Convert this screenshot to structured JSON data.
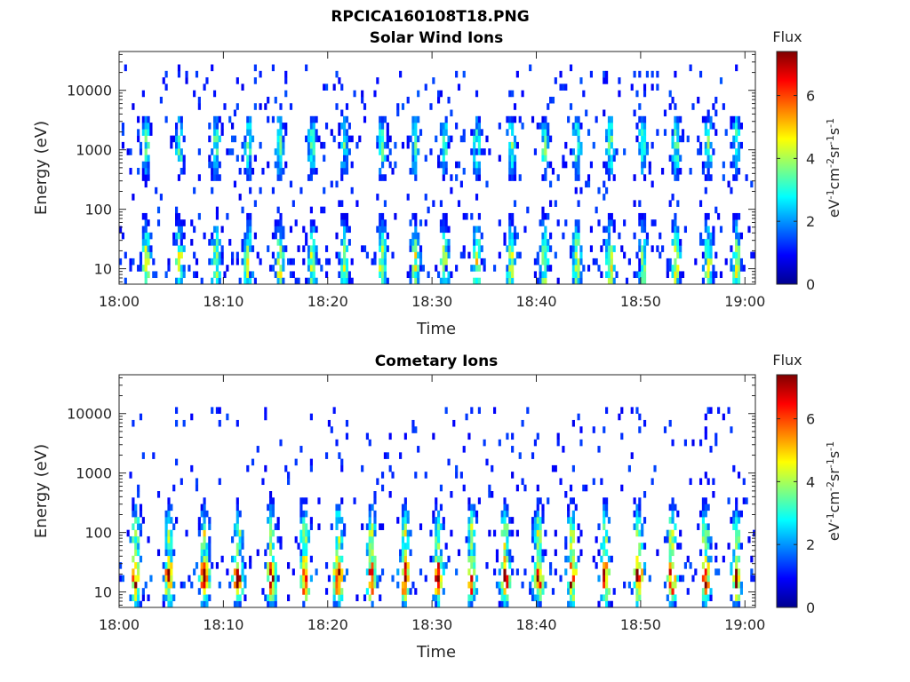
{
  "figure": {
    "title": "RPCICA160108T18.PNG"
  },
  "chart_data": [
    {
      "type": "heatmap",
      "title": "Solar Wind Ions",
      "xlabel": "Time",
      "ylabel": "Energy (eV)",
      "x_range": [
        "18:00",
        "19:01"
      ],
      "x_ticks": [
        "18:00",
        "18:10",
        "18:20",
        "18:30",
        "18:40",
        "18:50",
        "19:00"
      ],
      "y_scale": "log",
      "y_range": [
        5.5,
        45000
      ],
      "y_ticks": [
        10,
        100,
        1000,
        10000
      ],
      "y_tick_labels": [
        "10",
        "100",
        "1000",
        "10000"
      ],
      "colorbar": {
        "label": "Flux",
        "unit_label": "eV-1cm-2sr-1s-1",
        "range": [
          0,
          7.4
        ],
        "ticks": [
          0,
          2,
          4,
          6
        ],
        "colormap": "jet"
      },
      "bursts_minutes": [
        2.6,
        5.8,
        9.3,
        12.4,
        15.4,
        18.5,
        21.6,
        25.2,
        28.4,
        31.2,
        34.3,
        37.6,
        40.8,
        43.9,
        47.1,
        50.2,
        53.4,
        56.5,
        59.2
      ],
      "features": [
        {
          "band": "solar wind ions",
          "energy_min": 300,
          "energy_max": 4000,
          "peak_energy": 1200,
          "peak_flux": 3.0
        },
        {
          "band": "low-energy ions",
          "energy_min": 6,
          "energy_max": 150,
          "peak_energy": 12,
          "peak_flux": 3.7
        },
        {
          "band": "background",
          "energy_min": 6,
          "energy_max": 30000,
          "peak_flux": 1.3
        }
      ]
    },
    {
      "type": "heatmap",
      "title": "Cometary Ions",
      "xlabel": "Time",
      "ylabel": "Energy (eV)",
      "x_range": [
        "18:00",
        "19:01"
      ],
      "x_ticks": [
        "18:00",
        "18:10",
        "18:20",
        "18:30",
        "18:40",
        "18:50",
        "19:00"
      ],
      "y_scale": "log",
      "y_range": [
        5.5,
        45000
      ],
      "y_ticks": [
        10,
        100,
        1000,
        10000
      ],
      "y_tick_labels": [
        "10",
        "100",
        "1000",
        "10000"
      ],
      "colorbar": {
        "label": "Flux",
        "unit_label": "eV-1cm-2sr-1s-1",
        "range": [
          0,
          7.4
        ],
        "ticks": [
          0,
          2,
          4,
          6
        ],
        "colormap": "jet"
      },
      "bursts_minutes": [
        1.6,
        4.8,
        8.2,
        11.4,
        14.6,
        17.8,
        21.0,
        24.2,
        27.4,
        30.6,
        33.8,
        37.0,
        40.2,
        43.4,
        46.6,
        49.8,
        53.0,
        56.2,
        59.2
      ],
      "features": [
        {
          "band": "cometary ions",
          "energy_min": 6,
          "energy_max": 45,
          "peak_energy": 18,
          "peak_flux": 6.2
        },
        {
          "band": "cometary ion tails",
          "energy_min": 40,
          "energy_max": 500,
          "peak_energy": 80,
          "peak_flux": 3.6
        },
        {
          "band": "background",
          "energy_min": 300,
          "energy_max": 12000,
          "peak_flux": 1.2
        }
      ]
    }
  ]
}
